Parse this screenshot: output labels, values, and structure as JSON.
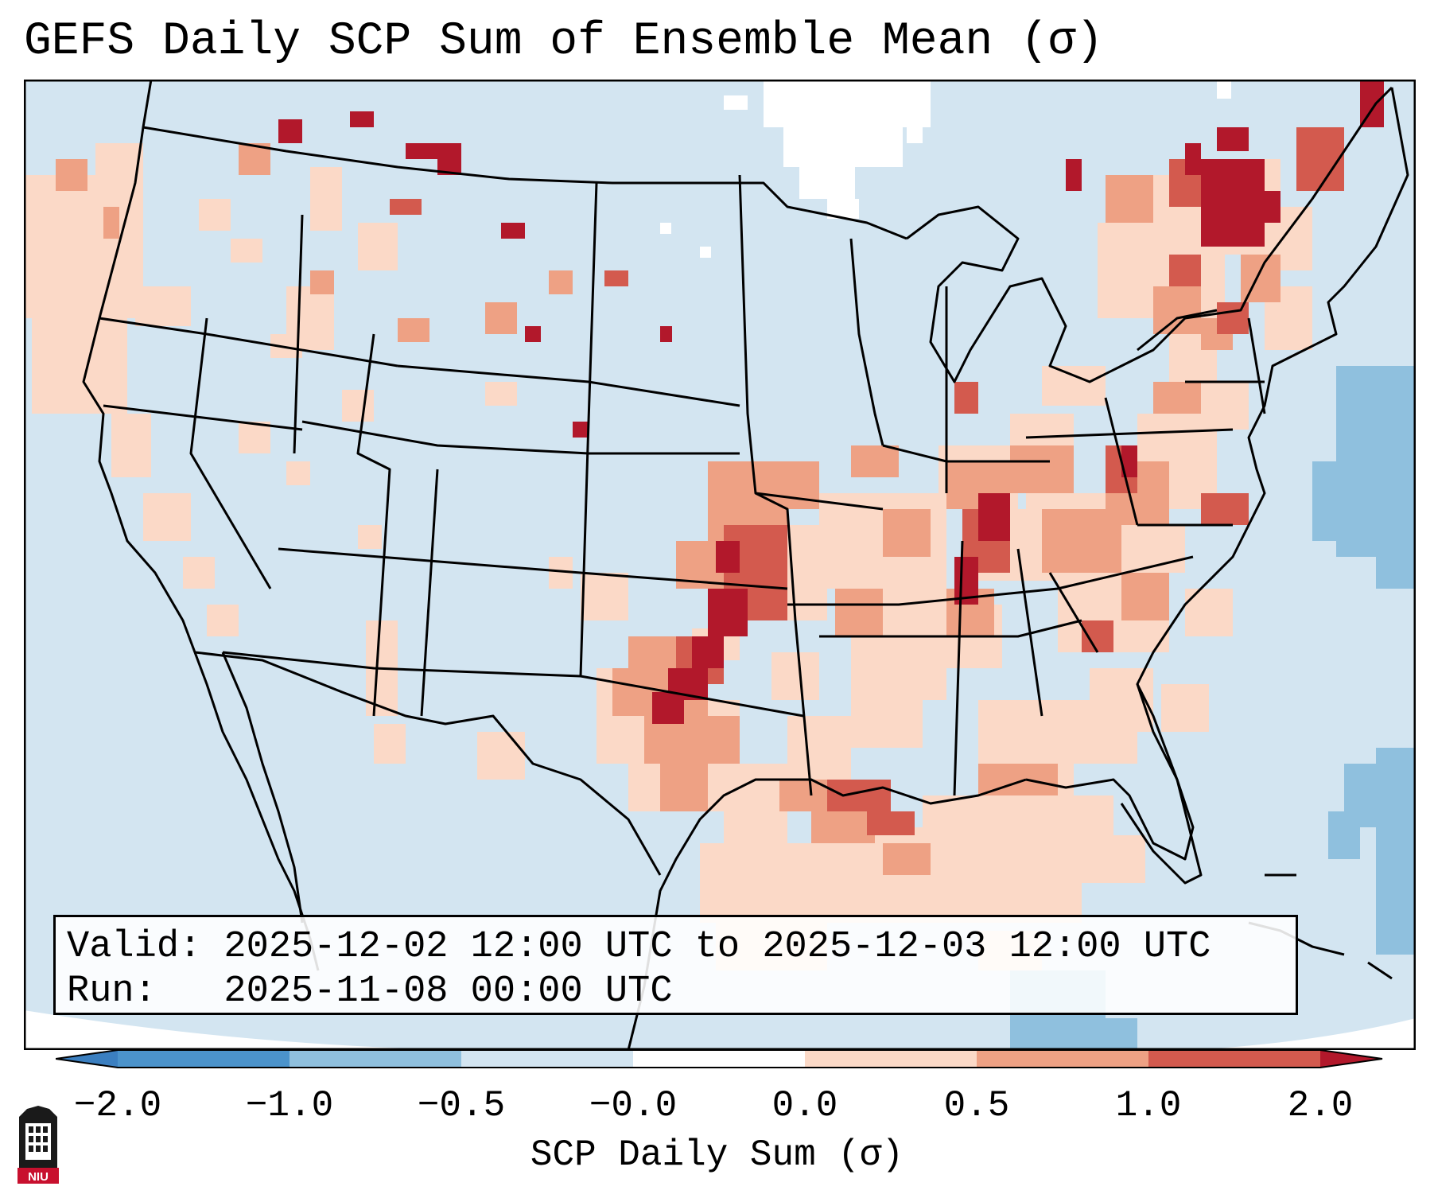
{
  "title": "GEFS Daily SCP Sum of Ensemble Mean (σ)",
  "valid_line": "Valid: 2025-12-02 12:00 UTC to 2025-12-03 12:00 UTC",
  "run_line": "Run:   2025-11-08 00:00 UTC",
  "colorbar": {
    "label": "SCP Daily Sum (σ)",
    "ticks": [
      "−2.0",
      "−1.0",
      "−0.5",
      "−0.0",
      "0.0",
      "0.5",
      "1.0",
      "2.0"
    ],
    "bins": [
      {
        "range": "< -2.0",
        "color": "#3b7fc0"
      },
      {
        "range": "-2.0 to -1.0",
        "color": "#4b93cb"
      },
      {
        "range": "-1.0 to -0.5",
        "color": "#8fc0de"
      },
      {
        "range": "-0.5 to -0.0",
        "color": "#d3e5f1"
      },
      {
        "range": "-0.0 to 0.0",
        "color": "#ffffff"
      },
      {
        "range": "0.0 to 0.5",
        "color": "#fbd9c7"
      },
      {
        "range": "0.5 to 1.0",
        "color": "#eea184"
      },
      {
        "range": "1.0 to 2.0",
        "color": "#d35a4e"
      },
      {
        "range": "> 2.0",
        "color": "#b2182b"
      }
    ]
  },
  "logo_text": "NIU",
  "map": {
    "background_color": "#d3e5f1",
    "region": "Contiguous United States, southern Canada, northern Mexico, Gulf of Mexico",
    "anomaly_areas": [
      {
        "name": "Red River / Oklahoma-Texas corridor",
        "category": "1.0 to 2.0+"
      },
      {
        "name": "Lower Mississippi, Tennessee and Ohio Valleys",
        "category": "0.0 to 1.0"
      },
      {
        "name": "Gulf Coast and Gulf of Mexico",
        "category": "0.0 to 1.0"
      },
      {
        "name": "Carolinas and Mid-Atlantic",
        "category": "0.5 to 1.0"
      },
      {
        "name": "Quebec / St. Lawrence",
        "category": "1.0 to 2.0+"
      },
      {
        "name": "Pacific Northwest and Great Basin",
        "category": "0.0 to 0.5"
      },
      {
        "name": "Western Atlantic offshore",
        "category": "-1.0 to -0.5"
      }
    ]
  }
}
